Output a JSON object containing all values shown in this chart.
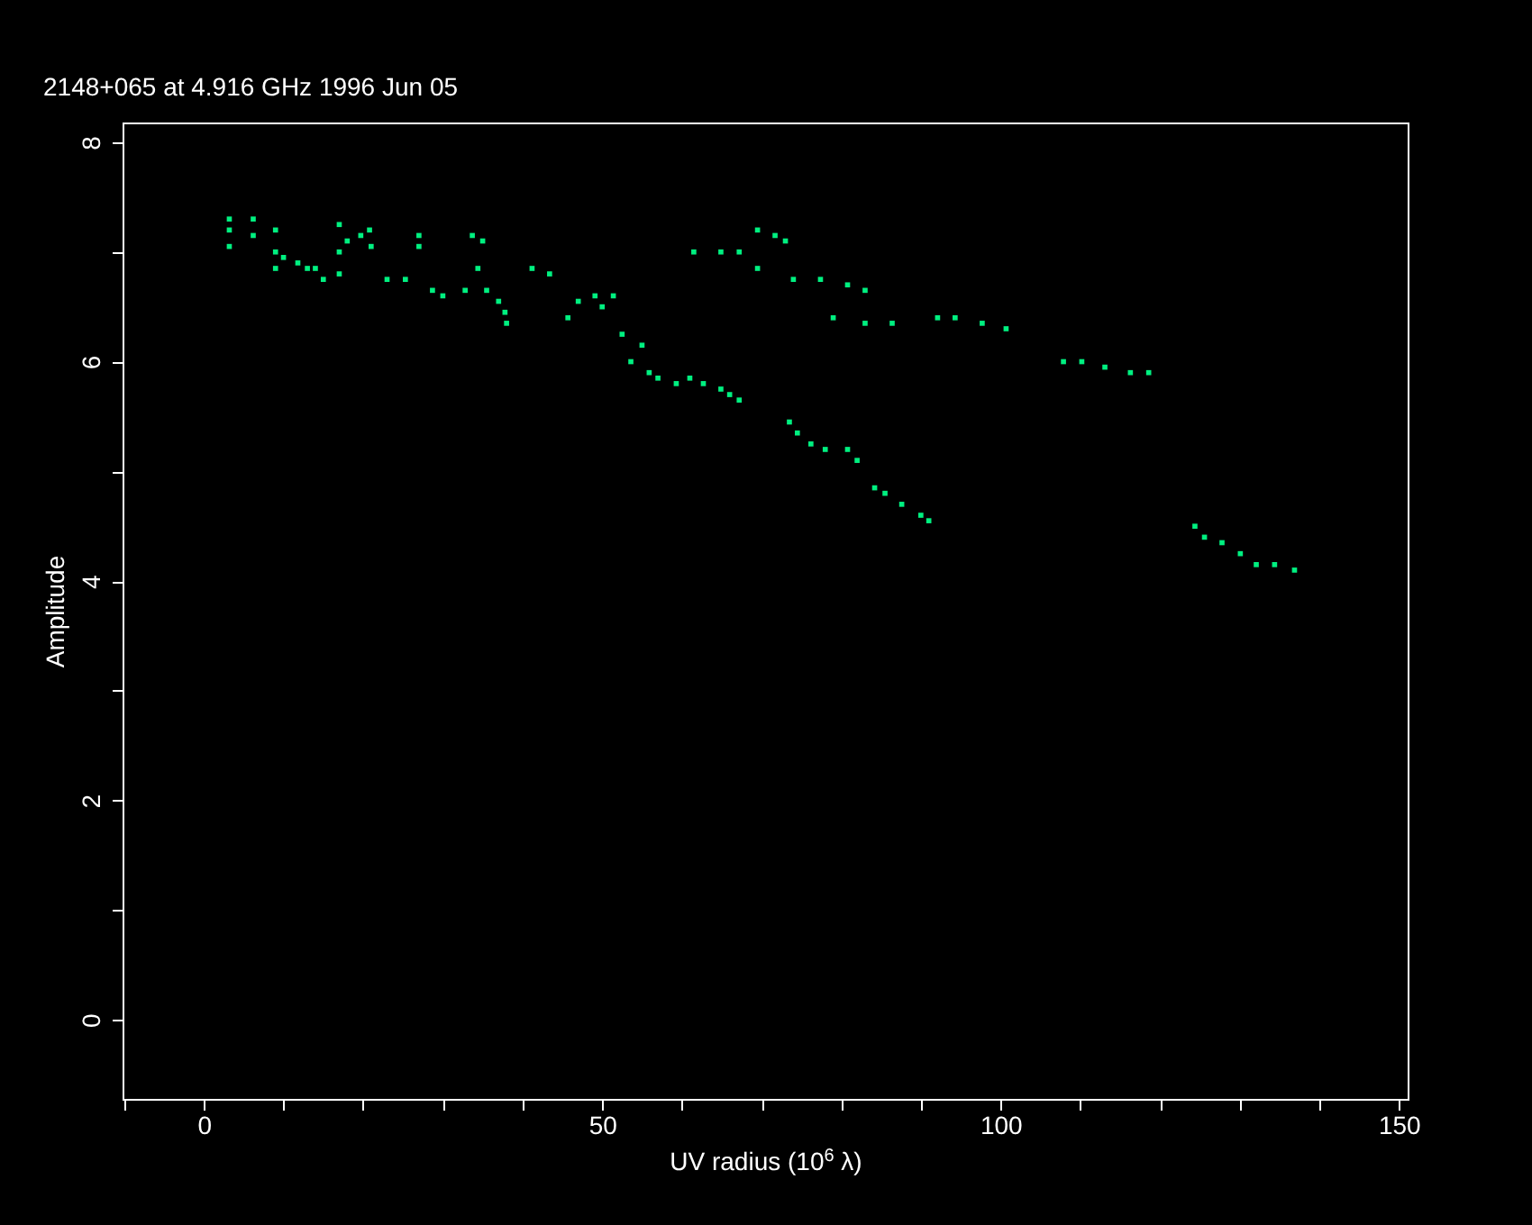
{
  "chart_data": {
    "type": "scatter",
    "title": "2148+065 at 4.916 GHz 1996 Jun 05",
    "xlabel": "UV radius  (10$^{6}$ λ)",
    "ylabel": "Amplitude",
    "xlim": [
      -10.2,
      151.1
    ],
    "ylim": [
      -0.72,
      8.18
    ],
    "xticks": [
      {
        "value": -10,
        "label": null
      },
      0,
      {
        "value": 10,
        "label": null
      },
      {
        "value": 20,
        "label": null
      },
      {
        "value": 30,
        "label": null
      },
      {
        "value": 40,
        "label": null
      },
      50,
      {
        "value": 60,
        "label": null
      },
      {
        "value": 70,
        "label": null
      },
      {
        "value": 80,
        "label": null
      },
      {
        "value": 90,
        "label": null
      },
      100,
      {
        "value": 110,
        "label": null
      },
      {
        "value": 120,
        "label": null
      },
      {
        "value": 130,
        "label": null
      },
      {
        "value": 140,
        "label": null
      },
      150
    ],
    "yticks": [
      0,
      {
        "value": 1,
        "label": null
      },
      2,
      {
        "value": 3,
        "label": null
      },
      4,
      {
        "value": 5,
        "label": null
      },
      6,
      {
        "value": 7,
        "label": null
      },
      8
    ],
    "grid": false,
    "marker": "square",
    "legend": false,
    "series": [
      {
        "color": "#00f080",
        "x": [
          3.2,
          3.2,
          3.2,
          6.2,
          6.2,
          9,
          9,
          9,
          10,
          11.8,
          13,
          14,
          15,
          17,
          17,
          17,
          18,
          19.7,
          20.8,
          21,
          23,
          25.3,
          27,
          27,
          28.7,
          30,
          32.8,
          33.7,
          34.4,
          35,
          35.5,
          37,
          37.8,
          38,
          41.2,
          43.4,
          45.7,
          47,
          49.1,
          50,
          51.4,
          52.5,
          53.6,
          55,
          55.9,
          57,
          59.3,
          61,
          62.7,
          64.9,
          66,
          67.2,
          73.5,
          74.5,
          76.2,
          78,
          80.8,
          82,
          84.2,
          85.5,
          87.6,
          90,
          91,
          61.5,
          64.9,
          67.2,
          69.5,
          71.7,
          73,
          69.5,
          74,
          77.4,
          80.8,
          83,
          79,
          83,
          86.4,
          92.1,
          94.3,
          97.7,
          100.7,
          107.9,
          110.2,
          113.1,
          116.3,
          118.6,
          124.4,
          125.6,
          127.8,
          130.1,
          132.1,
          134.4,
          136.9
        ],
        "values": [
          7.3,
          7.2,
          7.05,
          7.3,
          7.15,
          7.2,
          7.0,
          6.85,
          6.95,
          6.9,
          6.85,
          6.85,
          6.75,
          7.25,
          7.0,
          6.8,
          7.1,
          7.15,
          7.2,
          7.05,
          6.75,
          6.75,
          7.15,
          7.05,
          6.65,
          6.6,
          6.65,
          7.15,
          6.85,
          7.1,
          6.65,
          6.55,
          6.45,
          6.35,
          6.85,
          6.8,
          6.4,
          6.55,
          6.6,
          6.5,
          6.6,
          6.25,
          6.0,
          6.15,
          5.9,
          5.85,
          5.8,
          5.85,
          5.8,
          5.75,
          5.7,
          5.65,
          5.45,
          5.35,
          5.25,
          5.2,
          5.2,
          5.1,
          4.85,
          4.8,
          4.7,
          4.6,
          4.55,
          7.0,
          7.0,
          7.0,
          7.2,
          7.15,
          7.1,
          6.85,
          6.75,
          6.75,
          6.7,
          6.65,
          6.4,
          6.35,
          6.35,
          6.4,
          6.4,
          6.35,
          6.3,
          6.0,
          6.0,
          5.95,
          5.9,
          5.9,
          4.5,
          4.4,
          4.35,
          4.25,
          4.15,
          4.15,
          4.1
        ]
      }
    ]
  }
}
